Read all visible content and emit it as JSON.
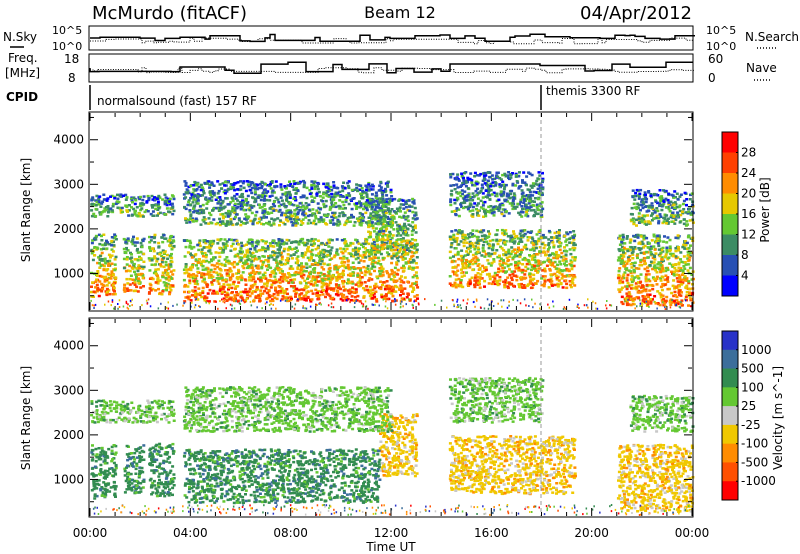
{
  "header": {
    "station": "McMurdo (fitACF)",
    "beam": "Beam 12",
    "date": "04/Apr/2012"
  },
  "status_panel": {
    "noise_label_left": "N.Sky",
    "noise_label_right": "N.Search",
    "noise_ticks_left": [
      "10^5",
      "10^0"
    ],
    "noise_ticks_right": [
      "10^5",
      "10^0"
    ],
    "freq_label_1": "Freq.",
    "freq_label_2": "[MHz]",
    "freq_ticks": [
      "18",
      "8"
    ],
    "nave_label": "Nave",
    "nave_ticks": [
      "60",
      "0"
    ],
    "cpid_label": "CPID",
    "cpid_modes": [
      {
        "text": "normalsound (fast) 157 RF"
      },
      {
        "text": "themis 3300 RF"
      }
    ]
  },
  "chart_data": [
    {
      "type": "heatmap",
      "title": "",
      "xlabel": "Time UT",
      "ylabel": "Slant Range [km]",
      "x_ticks": [
        "00:00",
        "04:00",
        "08:00",
        "12:00",
        "16:00",
        "20:00",
        "00:00"
      ],
      "y_ticks": [
        "1000",
        "2000",
        "3000",
        "4000"
      ],
      "xlim_hours": [
        0,
        24
      ],
      "ylim_km": [
        180,
        4600
      ],
      "colorbar": {
        "label": "Power [dB]",
        "tick_labels": [
          "4",
          "8",
          "12",
          "16",
          "20",
          "24",
          "28"
        ],
        "colors": [
          "#0000ff",
          "#2850b4",
          "#3c8c64",
          "#64c832",
          "#e6c800",
          "#ff8c00",
          "#ff4000",
          "#ff0000"
        ]
      },
      "scatter_regions": [
        {
          "t0": 0.0,
          "t1": 1.0,
          "r0": 500,
          "r1": 1900,
          "level": 0.7
        },
        {
          "t0": 1.3,
          "t1": 2.1,
          "r0": 600,
          "r1": 1850,
          "level": 0.65
        },
        {
          "t0": 2.3,
          "t1": 3.3,
          "r0": 550,
          "r1": 1900,
          "level": 0.65
        },
        {
          "t0": 3.7,
          "t1": 13.0,
          "r0": 400,
          "r1": 1800,
          "level": 0.75
        },
        {
          "t0": 11.0,
          "t1": 13.0,
          "r0": 1500,
          "r1": 2700,
          "level": 0.5
        },
        {
          "t0": 14.3,
          "t1": 19.3,
          "r0": 700,
          "r1": 2000,
          "level": 0.7
        },
        {
          "t0": 21.0,
          "t1": 24.0,
          "r0": 300,
          "r1": 1900,
          "level": 0.75
        },
        {
          "t0": 0.0,
          "t1": 3.3,
          "r0": 2300,
          "r1": 2800,
          "level": 0.35
        },
        {
          "t0": 3.7,
          "t1": 12.0,
          "r0": 2100,
          "r1": 3100,
          "level": 0.35
        },
        {
          "t0": 14.3,
          "t1": 18.0,
          "r0": 2300,
          "r1": 3300,
          "level": 0.3
        },
        {
          "t0": 21.5,
          "t1": 24.0,
          "r0": 2100,
          "r1": 2900,
          "level": 0.4
        }
      ]
    },
    {
      "type": "heatmap",
      "title": "",
      "xlabel": "Time UT",
      "ylabel": "Slant Range [km]",
      "x_ticks": [
        "00:00",
        "04:00",
        "08:00",
        "12:00",
        "16:00",
        "20:00",
        "00:00"
      ],
      "y_ticks": [
        "1000",
        "2000",
        "3000",
        "4000"
      ],
      "xlim_hours": [
        0,
        24
      ],
      "ylim_km": [
        180,
        4600
      ],
      "colorbar": {
        "label": "Velocity [m s^-1]",
        "tick_labels": [
          "1000",
          "500",
          "100",
          "25",
          "-25",
          "-100",
          "-500",
          "-1000"
        ],
        "colors": [
          "#2832c8",
          "#3c6e9b",
          "#328c50",
          "#64c832",
          "#c8c8c8",
          "#f0c800",
          "#ff8c00",
          "#ff5000",
          "#ff0000"
        ]
      },
      "scatter_regions": [
        {
          "t0": 0.0,
          "t1": 1.0,
          "r0": 600,
          "r1": 1800,
          "vel": "100"
        },
        {
          "t0": 1.3,
          "t1": 2.1,
          "r0": 700,
          "r1": 1800,
          "vel": "100"
        },
        {
          "t0": 2.3,
          "t1": 3.3,
          "r0": 650,
          "r1": 1850,
          "vel": "100"
        },
        {
          "t0": 3.7,
          "t1": 11.5,
          "r0": 500,
          "r1": 1700,
          "vel": "100"
        },
        {
          "t0": 11.5,
          "t1": 13.0,
          "r0": 1100,
          "r1": 2500,
          "vel": "-100"
        },
        {
          "t0": 14.3,
          "t1": 19.3,
          "r0": 700,
          "r1": 2000,
          "vel": "-100"
        },
        {
          "t0": 21.0,
          "t1": 24.0,
          "r0": 300,
          "r1": 1800,
          "vel": "-100"
        },
        {
          "t0": 0.0,
          "t1": 3.3,
          "r0": 2300,
          "r1": 2800,
          "vel": "25"
        },
        {
          "t0": 3.7,
          "t1": 12.0,
          "r0": 2100,
          "r1": 3100,
          "vel": "25"
        },
        {
          "t0": 14.3,
          "t1": 18.0,
          "r0": 2300,
          "r1": 3300,
          "vel": "25"
        },
        {
          "t0": 21.5,
          "t1": 24.0,
          "r0": 2100,
          "r1": 2900,
          "vel": "25"
        }
      ]
    }
  ]
}
